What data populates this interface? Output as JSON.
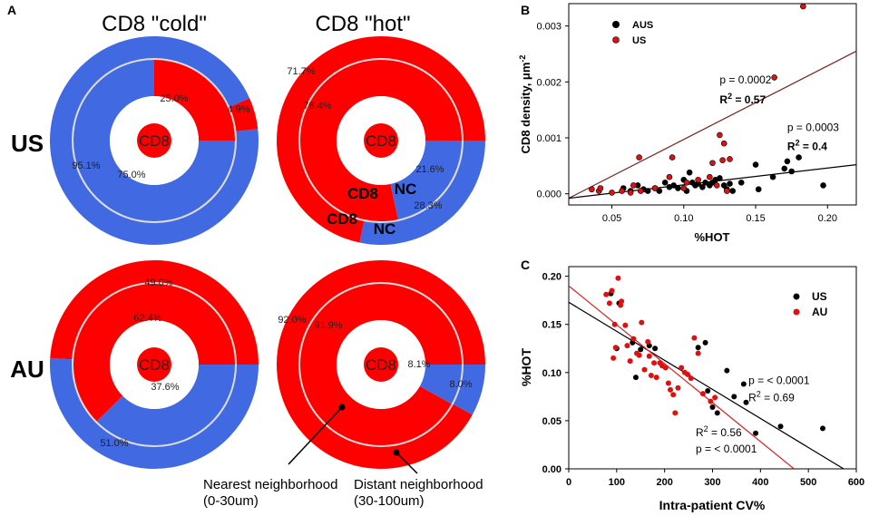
{
  "colors": {
    "hot": "#ff0000",
    "cold": "#4169e1",
    "divider": "#ffffff",
    "ring_gap": "#dddddd",
    "black": "#000000",
    "red_line": "#e02020",
    "dark_red_line": "#7a1f1f"
  },
  "panel_a": {
    "letter": "A",
    "col_titles": [
      "CD8 \"cold\"",
      "CD8 \"hot\""
    ],
    "row_labels": [
      "US",
      "AU"
    ],
    "center_label": "CD8",
    "callouts": {
      "nearest": [
        "Nearest neighborhood",
        "(0-30um)"
      ],
      "distant": [
        "Distant neighborhood",
        "(30-100um)"
      ]
    },
    "donuts": [
      {
        "id": "us-cold",
        "outer": [
          {
            "label": "4.9%",
            "value": 4.9,
            "class": "hot"
          },
          {
            "label": "95.1%",
            "value": 95.1,
            "class": "cold"
          }
        ],
        "inner": [
          {
            "label": "25.0%",
            "value": 25.0,
            "class": "hot"
          },
          {
            "label": "75.0%",
            "value": 75.0,
            "class": "cold"
          }
        ]
      },
      {
        "id": "us-hot",
        "outer": [
          {
            "label": "28.3%",
            "value": 28.3,
            "class": "cold"
          },
          {
            "label": "71.7%",
            "value": 71.7,
            "class": "hot"
          }
        ],
        "inner": [
          {
            "label": "21.6%",
            "value": 21.6,
            "class": "cold"
          },
          {
            "label": "78.4%",
            "value": 78.4,
            "class": "hot"
          }
        ],
        "slice_tags": {
          "inner_hot": "CD8",
          "inner_cold": "NC",
          "outer_hot": "CD8",
          "outer_cold": "NC"
        }
      },
      {
        "id": "au-cold",
        "outer": [
          {
            "label": "51.0%",
            "value": 51.0,
            "class": "cold"
          },
          {
            "label": "49.0%",
            "value": 49.0,
            "class": "hot"
          }
        ],
        "inner": [
          {
            "label": "37.6%",
            "value": 37.6,
            "class": "cold"
          },
          {
            "label": "62.4%",
            "value": 62.4,
            "class": "hot"
          }
        ]
      },
      {
        "id": "au-hot",
        "outer": [
          {
            "label": "8.0%",
            "value": 8.0,
            "class": "cold"
          },
          {
            "label": "92.0%",
            "value": 92.0,
            "class": "hot"
          }
        ],
        "inner": [
          {
            "label": "8.1%",
            "value": 8.1,
            "class": "cold"
          },
          {
            "label": "91.9%",
            "value": 91.9,
            "class": "hot"
          }
        ]
      }
    ]
  },
  "chart_data": [
    {
      "panel": "B",
      "type": "scatter",
      "xlabel": "%HOT",
      "ylabel": "CD8 density, μm⁻²",
      "ylabel_main": "CD8 density, μm",
      "ylabel_sup": "-2",
      "xlim": [
        0.02,
        0.22
      ],
      "ylim": [
        -0.0002,
        0.0034
      ],
      "xticks": [
        0.05,
        0.1,
        0.15,
        0.2
      ],
      "xtick_labels": [
        "0.05",
        "0.10",
        "0.15",
        "0.20"
      ],
      "yticks": [
        0.0,
        0.001,
        0.002,
        0.003
      ],
      "ytick_labels": [
        "0.000",
        "0.001",
        "0.002",
        "0.003"
      ],
      "legend": [
        "AUS",
        "US"
      ],
      "series": [
        {
          "name": "AUS",
          "color": "#000000",
          "points": [
            [
              0.058,
              0.0001
            ],
            [
              0.063,
              5e-05
            ],
            [
              0.068,
              0.00015
            ],
            [
              0.072,
              8e-05
            ],
            [
              0.075,
              5e-05
            ],
            [
              0.08,
              0.0001
            ],
            [
              0.083,
              5e-05
            ],
            [
              0.087,
              0.0002
            ],
            [
              0.09,
              0.00012
            ],
            [
              0.093,
              0.00015
            ],
            [
              0.096,
              0.0001
            ],
            [
              0.1,
              0.00025
            ],
            [
              0.102,
              5e-05
            ],
            [
              0.104,
              0.00038
            ],
            [
              0.106,
              0.0002
            ],
            [
              0.108,
              0.00015
            ],
            [
              0.11,
              0.00018
            ],
            [
              0.113,
              0.00012
            ],
            [
              0.115,
              0.0002
            ],
            [
              0.118,
              0.00015
            ],
            [
              0.12,
              0.0002
            ],
            [
              0.122,
              0.00025
            ],
            [
              0.125,
              0.00028
            ],
            [
              0.128,
              0.00015
            ],
            [
              0.13,
              8e-05
            ],
            [
              0.132,
              0.00018
            ],
            [
              0.134,
              5e-05
            ],
            [
              0.14,
              0.0002
            ],
            [
              0.15,
              0.00052
            ],
            [
              0.152,
              8e-05
            ],
            [
              0.162,
              0.0003
            ],
            [
              0.17,
              0.00045
            ],
            [
              0.172,
              0.00058
            ],
            [
              0.175,
              0.0004
            ],
            [
              0.18,
              0.00065
            ],
            [
              0.197,
              0.00015
            ]
          ]
        },
        {
          "name": "US",
          "color": "#e01010",
          "points": [
            [
              0.036,
              8e-05
            ],
            [
              0.041,
              5e-05
            ],
            [
              0.042,
              0.0001
            ],
            [
              0.05,
              2e-05
            ],
            [
              0.057,
              5e-05
            ],
            [
              0.063,
              2e-05
            ],
            [
              0.065,
              0.00015
            ],
            [
              0.069,
              0.00065
            ],
            [
              0.07,
              5e-05
            ],
            [
              0.08,
              0.0001
            ],
            [
              0.09,
              0.0003
            ],
            [
              0.092,
              0.00065
            ],
            [
              0.1,
              0.0001
            ],
            [
              0.102,
              0.0002
            ],
            [
              0.11,
              0.00025
            ],
            [
              0.118,
              0.0003
            ],
            [
              0.12,
              0.00055
            ],
            [
              0.123,
              0.00015
            ],
            [
              0.125,
              0.00105
            ],
            [
              0.127,
              0.0006
            ],
            [
              0.128,
              0.0009
            ],
            [
              0.13,
              5e-05
            ],
            [
              0.132,
              0.00062
            ],
            [
              0.163,
              0.00208
            ],
            [
              0.183,
              0.00335
            ]
          ]
        }
      ],
      "fits": [
        {
          "name": "US fit",
          "color": "#7a1f1f",
          "x": [
            0.02,
            0.22
          ],
          "y": [
            -8e-05,
            0.00255
          ]
        },
        {
          "name": "AUS fit",
          "color": "#000000",
          "x": [
            0.02,
            0.22
          ],
          "y": [
            -8e-05,
            0.00052
          ]
        }
      ],
      "annotations": [
        {
          "text": "p = 0.0002",
          "x": 0.125,
          "y": 0.00197,
          "bold": false
        },
        {
          "text": "R",
          "sup": "2",
          "after": " = 0.57",
          "x": 0.125,
          "y": 0.00162,
          "bold": true
        },
        {
          "text": "p = 0.0003",
          "x": 0.172,
          "y": 0.00112,
          "bold": false
        },
        {
          "text": "R",
          "sup": "2",
          "after": " = 0.4",
          "x": 0.172,
          "y": 0.00078,
          "bold": true
        }
      ]
    },
    {
      "panel": "C",
      "type": "scatter",
      "xlabel": "Intra-patient CV%",
      "ylabel": "%HOT",
      "xlim": [
        0,
        600
      ],
      "ylim": [
        0.0,
        0.21
      ],
      "xticks": [
        0,
        100,
        200,
        300,
        400,
        500,
        600
      ],
      "xtick_labels": [
        "0",
        "100",
        "200",
        "300",
        "400",
        "500",
        "600"
      ],
      "yticks": [
        0.0,
        0.05,
        0.1,
        0.15,
        0.2
      ],
      "ytick_labels": [
        "0.00",
        "0.05",
        "0.10",
        "0.15",
        "0.20"
      ],
      "legend": [
        "US",
        "AU"
      ],
      "series": [
        {
          "name": "US",
          "color": "#000000",
          "points": [
            [
              88,
              0.182
            ],
            [
              100,
              0.125
            ],
            [
              105,
              0.172
            ],
            [
              133,
              0.131
            ],
            [
              140,
              0.095
            ],
            [
              150,
              0.124
            ],
            [
              168,
              0.128
            ],
            [
              180,
              0.125
            ],
            [
              270,
              0.126
            ],
            [
              285,
              0.131
            ],
            [
              290,
              0.081
            ],
            [
              300,
              0.064
            ],
            [
              310,
              0.058
            ],
            [
              330,
              0.102
            ],
            [
              345,
              0.075
            ],
            [
              365,
              0.088
            ],
            [
              370,
              0.069
            ],
            [
              390,
              0.037
            ],
            [
              442,
              0.044
            ],
            [
              530,
              0.042
            ]
          ]
        },
        {
          "name": "AU",
          "color": "#e01010",
          "points": [
            [
              78,
              0.181
            ],
            [
              85,
              0.172
            ],
            [
              90,
              0.185
            ],
            [
              93,
              0.115
            ],
            [
              96,
              0.15
            ],
            [
              98,
              0.126
            ],
            [
              103,
              0.198
            ],
            [
              108,
              0.17
            ],
            [
              110,
              0.174
            ],
            [
              118,
              0.149
            ],
            [
              122,
              0.128
            ],
            [
              128,
              0.112
            ],
            [
              135,
              0.135
            ],
            [
              142,
              0.12
            ],
            [
              147,
              0.118
            ],
            [
              152,
              0.152
            ],
            [
              158,
              0.103
            ],
            [
              165,
              0.132
            ],
            [
              168,
              0.117
            ],
            [
              172,
              0.097
            ],
            [
              178,
              0.11
            ],
            [
              183,
              0.095
            ],
            [
              190,
              0.11
            ],
            [
              195,
              0.107
            ],
            [
              202,
              0.105
            ],
            [
              208,
              0.089
            ],
            [
              212,
              0.082
            ],
            [
              218,
              0.077
            ],
            [
              222,
              0.058
            ],
            [
              228,
              0.084
            ],
            [
              235,
              0.105
            ],
            [
              242,
              0.1
            ],
            [
              248,
              0.098
            ],
            [
              255,
              0.094
            ],
            [
              262,
              0.136
            ],
            [
              270,
              0.12
            ],
            [
              280,
              0.078
            ],
            [
              296,
              0.07
            ],
            [
              305,
              0.074
            ]
          ]
        }
      ],
      "fits": [
        {
          "name": "US fit",
          "color": "#000000",
          "x": [
            0,
            600
          ],
          "y": [
            0.173,
            -0.008
          ]
        },
        {
          "name": "AU fit",
          "color": "#e02020",
          "x": [
            0,
            470
          ],
          "y": [
            0.19,
            0.0
          ]
        }
      ],
      "annotations": [
        {
          "text": "p = < 0.0001",
          "x": 375,
          "y": 0.088,
          "bold": false
        },
        {
          "text": "R",
          "sup": "2",
          "after": " = 0.69",
          "x": 375,
          "y": 0.07,
          "bold": false
        },
        {
          "text": "R",
          "sup": "2",
          "after": " = 0.56",
          "x": 265,
          "y": 0.034,
          "bold": false
        },
        {
          "text": "p = < 0.0001",
          "x": 265,
          "y": 0.017,
          "bold": false
        }
      ]
    }
  ]
}
